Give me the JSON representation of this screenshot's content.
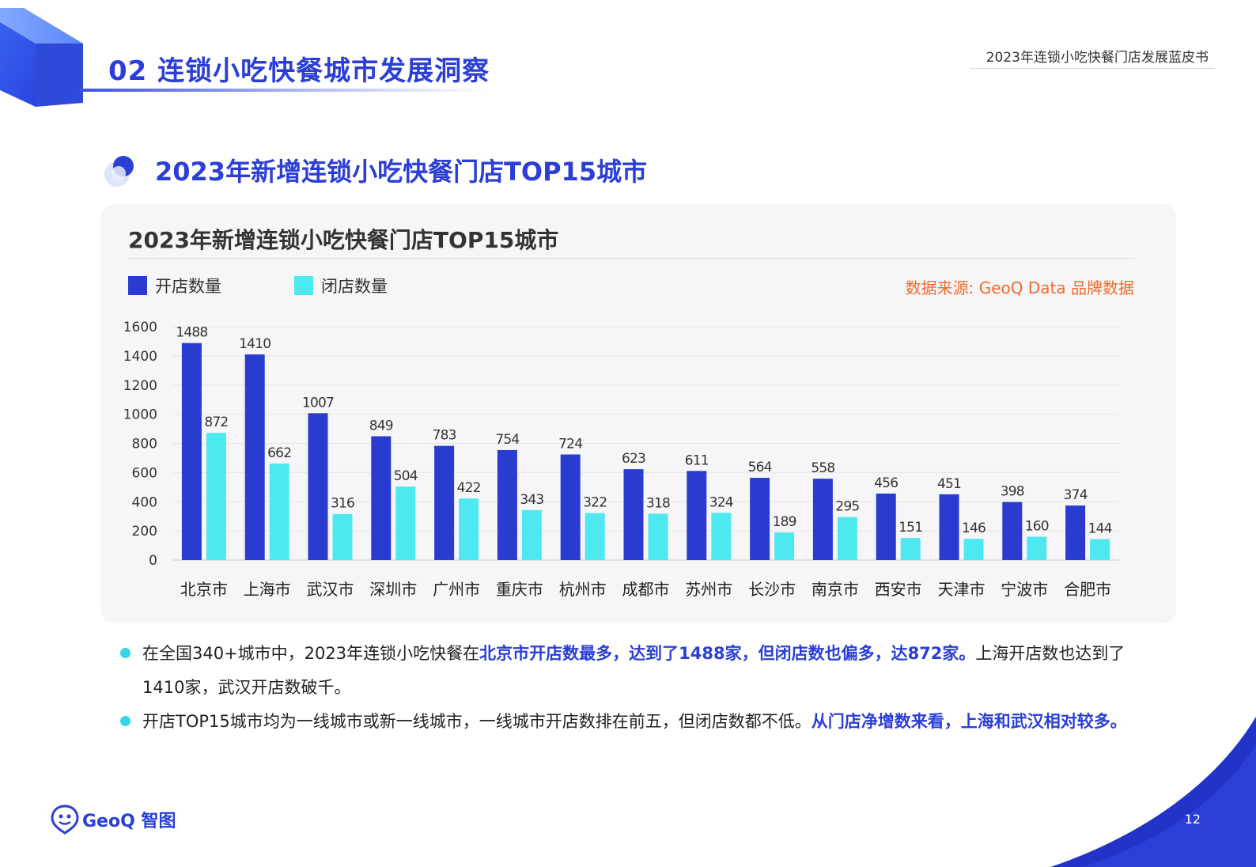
{
  "header": {
    "section_title": "02 连锁小吃快餐城市发展洞察",
    "report_name": "2023年连锁小吃快餐门店发展蓝皮书"
  },
  "subheading": "2023年新增连锁小吃快餐门店TOP15城市",
  "source_note": "数据来源: GeoQ Data 品牌数据",
  "colors": {
    "accent": "#2b3fd6",
    "open_series": "#2a3bd0",
    "close_series": "#4de8f0",
    "source": "#f06a2a",
    "bullet_dot": "#35d6e8"
  },
  "chart_data": {
    "type": "bar",
    "title": "2023年新增连锁小吃快餐门店TOP15城市",
    "categories": [
      "北京市",
      "上海市",
      "武汉市",
      "深圳市",
      "广州市",
      "重庆市",
      "杭州市",
      "成都市",
      "苏州市",
      "长沙市",
      "南京市",
      "西安市",
      "天津市",
      "宁波市",
      "合肥市"
    ],
    "series": [
      {
        "name": "开店数量",
        "values": [
          1488,
          1410,
          1007,
          849,
          783,
          754,
          724,
          623,
          611,
          564,
          558,
          456,
          451,
          398,
          374
        ]
      },
      {
        "name": "闭店数量",
        "values": [
          872,
          662,
          316,
          504,
          422,
          343,
          322,
          318,
          324,
          189,
          295,
          151,
          146,
          160,
          144
        ]
      }
    ],
    "ylim": [
      0,
      1600
    ],
    "yticks": [
      0,
      200,
      400,
      600,
      800,
      1000,
      1200,
      1400,
      1600
    ],
    "xlabel": "",
    "ylabel": "",
    "grid": true,
    "legend": "top-left"
  },
  "bullets": [
    {
      "parts": [
        {
          "text": "在全国340+城市中，2023年连锁小吃快餐在",
          "hl": false
        },
        {
          "text": "北京市开店数最多，达到了1488家，但闭店数也偏多，达872家。",
          "hl": true
        },
        {
          "text": "上海开店数也达到了1410家，武汉开店数破千。",
          "hl": false
        }
      ]
    },
    {
      "parts": [
        {
          "text": "开店TOP15城市均为一线城市或新一线城市，一线城市开店数排在前五，但闭店数都不低。",
          "hl": false
        },
        {
          "text": "从门店净增数来看，上海和武汉相对较多。",
          "hl": true
        }
      ]
    }
  ],
  "footer": {
    "logo_text": "GeoQ 智图",
    "page_number": "12"
  }
}
